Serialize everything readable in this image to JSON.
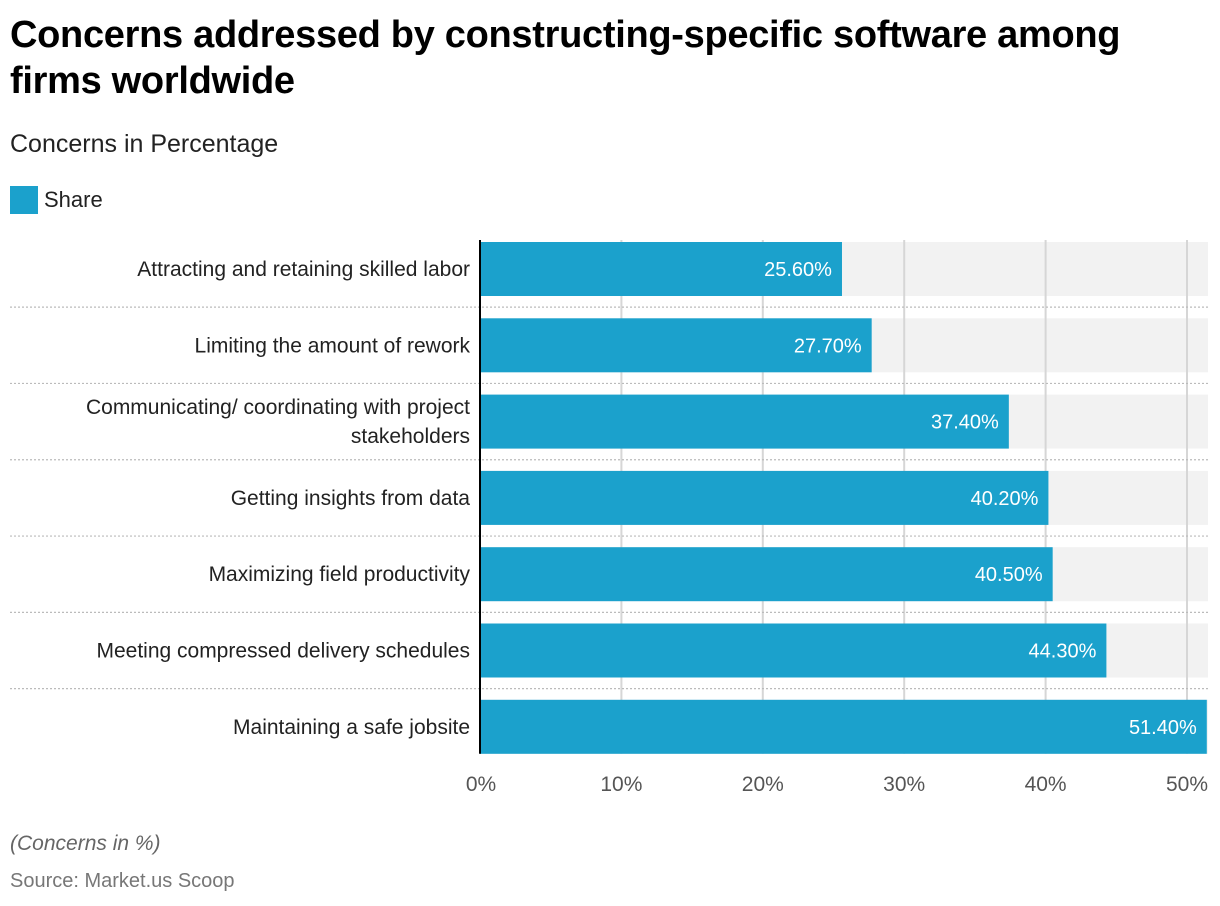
{
  "header": {
    "title": "Concerns addressed by constructing-specific software among firms worldwide",
    "subtitle": "Concerns in Percentage"
  },
  "legend": {
    "items": [
      {
        "label": "Share",
        "color": "#1ba1cc"
      }
    ]
  },
  "footer": {
    "note": "(Concerns in %)",
    "source": "Source: Market.us Scoop"
  },
  "colors": {
    "bar": "#1ba1cc",
    "track": "#f2f2f2",
    "grid": "#d6d6d6",
    "axis": "#000000"
  },
  "chart_data": {
    "type": "bar",
    "orientation": "horizontal",
    "title": "Concerns addressed by constructing-specific software among firms worldwide",
    "subtitle": "Concerns in Percentage",
    "xlabel": "",
    "ylabel": "",
    "categories": [
      [
        "Attracting and retaining skilled labor"
      ],
      [
        "Limiting the amount of rework"
      ],
      [
        "Communicating/ coordinating with project",
        "stakeholders"
      ],
      [
        "Getting insights from data"
      ],
      [
        "Maximizing field productivity"
      ],
      [
        "Meeting compressed delivery schedules"
      ],
      [
        "Maintaining a safe jobsite"
      ]
    ],
    "series": [
      {
        "name": "Share",
        "values": [
          25.6,
          27.7,
          37.4,
          40.2,
          40.5,
          44.3,
          51.4
        ]
      }
    ],
    "data_labels": [
      "25.60%",
      "27.70%",
      "37.40%",
      "40.20%",
      "40.50%",
      "44.30%",
      "51.40%"
    ],
    "xlim": [
      0,
      51.4
    ],
    "xticks": [
      0,
      10,
      20,
      30,
      40,
      50
    ],
    "xtick_labels": [
      "0%",
      "10%",
      "20%",
      "30%",
      "40%",
      "50%"
    ],
    "grid": true,
    "legend_position": "top-left"
  }
}
